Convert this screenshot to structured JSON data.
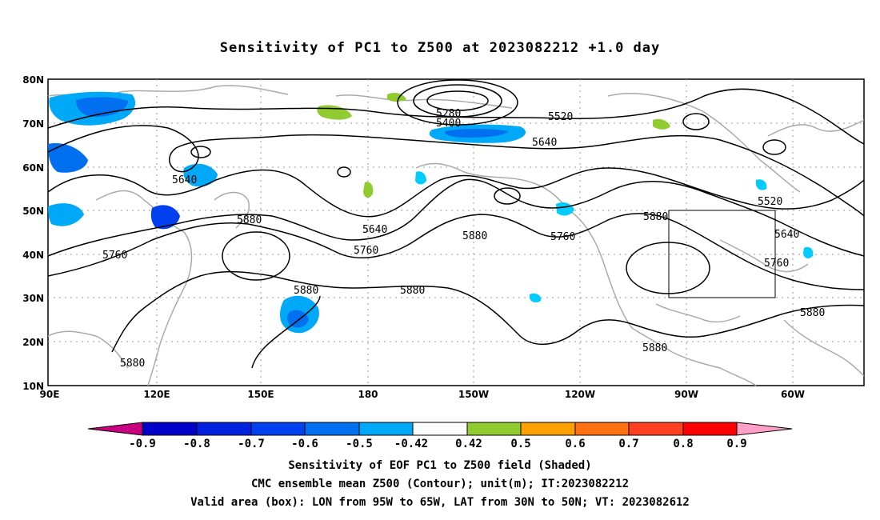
{
  "title": "Sensitivity of PC1 to Z500 at 2023082212 +1.0 day",
  "footer": {
    "line1": "Sensitivity of EOF PC1 to Z500 field (Shaded)",
    "line2": "CMC ensemble mean Z500 (Contour); unit(m); IT:2023082212",
    "line3": "Valid area (box): LON from 95W to 65W, LAT from 30N to 50N; VT: 2023082612"
  },
  "map": {
    "lat_labels": [
      "80N",
      "70N",
      "60N",
      "50N",
      "40N",
      "30N",
      "20N",
      "10N"
    ],
    "lon_labels": [
      "90E",
      "120E",
      "150E",
      "180",
      "150W",
      "120W",
      "90W",
      "60W"
    ],
    "contour_labels": [
      "5280",
      "5400",
      "5520",
      "5640",
      "5640",
      "5640",
      "5520",
      "5640",
      "5760",
      "5880",
      "5880",
      "5760",
      "5760",
      "5880",
      "5880",
      "5760",
      "5880",
      "5880",
      "5880",
      "5880"
    ]
  },
  "colorbar": {
    "colors": [
      "#c8007f",
      "#0000c8",
      "#0022e0",
      "#0040f0",
      "#0070f0",
      "#00a8f8",
      "#00ccff",
      "#ffffff",
      "#90cc30",
      "#ffa000",
      "#ff7010",
      "#ff4020",
      "#ff0000",
      "#ffa0c8"
    ],
    "labels": [
      "-0.9",
      "-0.8",
      "-0.7",
      "-0.6",
      "-0.5",
      "-0.42",
      "0.42",
      "0.5",
      "0.6",
      "0.7",
      "0.8",
      "0.9"
    ]
  }
}
